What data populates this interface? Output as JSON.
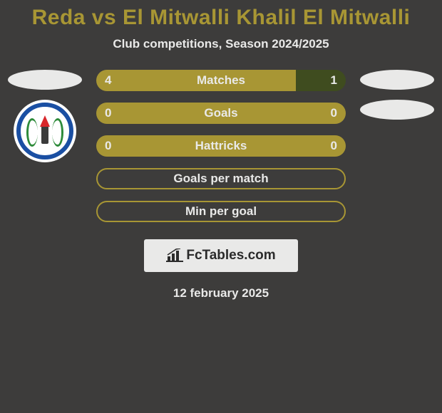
{
  "colors": {
    "background": "#3d3c3b",
    "title": "#a89634",
    "text": "#e9e9e8",
    "barA": "#a89634",
    "barB": "#3f4c1f",
    "rowBorder": "#a89634",
    "attribution_bg": "#e9e9e8",
    "attribution_text": "#2b2b2b"
  },
  "title": "Reda vs El Mitwalli Khalil El Mitwalli",
  "subtitle": "Club competitions, Season 2024/2025",
  "rows": [
    {
      "label": "Matches",
      "left": "4",
      "right": "1",
      "leftVal": 4,
      "rightVal": 1
    },
    {
      "label": "Goals",
      "left": "0",
      "right": "0",
      "leftVal": 0,
      "rightVal": 0
    },
    {
      "label": "Hattricks",
      "left": "0",
      "right": "0",
      "leftVal": 0,
      "rightVal": 0
    },
    {
      "label": "Goals per match",
      "left": "",
      "right": "",
      "leftVal": 0,
      "rightVal": 0
    },
    {
      "label": "Min per goal",
      "left": "",
      "right": "",
      "leftVal": 0,
      "rightVal": 0
    }
  ],
  "row_styling": {
    "height": 30,
    "gap": 16,
    "border_radius": 16,
    "label_fontsize": 17,
    "value_fontsize": 17,
    "border_width": 2
  },
  "attribution": "FcTables.com",
  "date": "12 february 2025",
  "left_player_has_club_badge": true,
  "right_player_has_club_badge": false
}
